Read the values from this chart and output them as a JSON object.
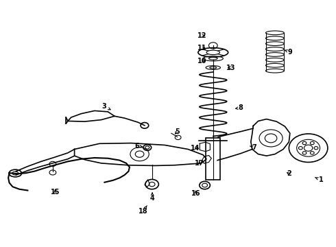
{
  "title": "",
  "bg_color": "#ffffff",
  "fig_width": 4.9,
  "fig_height": 3.6,
  "dpi": 100,
  "labels": {
    "1": [
      0.958,
      0.27,
      0.94,
      0.28
    ],
    "2": [
      0.862,
      0.295,
      0.85,
      0.305
    ],
    "3": [
      0.308,
      0.57,
      0.33,
      0.555
    ],
    "4": [
      0.453,
      0.195,
      0.453,
      0.22
    ],
    "5": [
      0.527,
      0.467,
      0.52,
      0.455
    ],
    "6": [
      0.408,
      0.408,
      0.425,
      0.405
    ],
    "7": [
      0.758,
      0.402,
      0.745,
      0.408
    ],
    "8": [
      0.718,
      0.565,
      0.7,
      0.56
    ],
    "9": [
      0.865,
      0.792,
      0.848,
      0.8
    ],
    "10": [
      0.602,
      0.755,
      0.618,
      0.755
    ],
    "11": [
      0.602,
      0.808,
      0.618,
      0.808
    ],
    "12": [
      0.602,
      0.858,
      0.618,
      0.858
    ],
    "13": [
      0.688,
      0.728,
      0.672,
      0.728
    ],
    "14": [
      0.582,
      0.4,
      0.598,
      0.4
    ],
    "15": [
      0.162,
      0.22,
      0.162,
      0.238
    ],
    "16": [
      0.583,
      0.215,
      0.583,
      0.235
    ],
    "17": [
      0.594,
      0.338,
      0.594,
      0.355
    ],
    "18": [
      0.426,
      0.143,
      0.437,
      0.165
    ]
  }
}
